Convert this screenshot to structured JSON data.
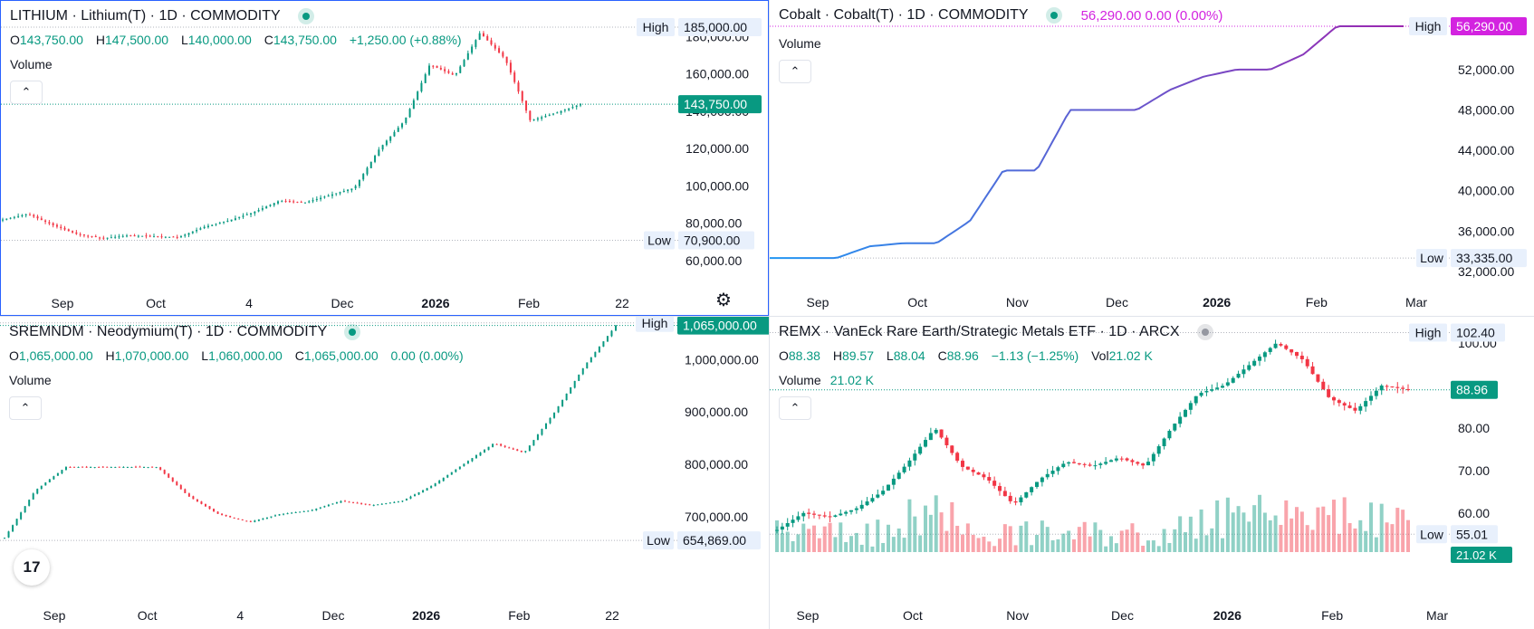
{
  "panes": [
    {
      "id": "lithium",
      "legend": {
        "symbol": "LITHIUM · Lithium(T) · 1D · COMMODITY",
        "status_dot_color": "#089981"
      },
      "ohlc": {
        "o": "143,750.00",
        "h": "147,500.00",
        "l": "140,000.00",
        "c": "143,750.00",
        "change": "+1,250.00 (+0.88%)",
        "change_color": "#089981"
      },
      "volume_label": "Volume",
      "high_tag": {
        "label": "High",
        "value": "185,000.00"
      },
      "low_tag": {
        "label": "Low",
        "value": "70,900.00"
      },
      "price_tag": {
        "value": "143,750.00",
        "color": "#089981"
      },
      "y_ticks": [
        "60,000.00",
        "80,000.00",
        "100,000.00",
        "120,000.00",
        "140,000.00",
        "160,000.00",
        "180,000.00"
      ],
      "x_ticks": [
        "Sep",
        "Oct",
        "4",
        "Dec",
        "2026",
        "Feb",
        "22"
      ]
    },
    {
      "id": "cobalt",
      "legend": {
        "symbol": "Cobalt · Cobalt(T) · 1D · COMMODITY",
        "status_dot_color": "#089981",
        "inline_values": "56,290.00  0.00 (0.00%)"
      },
      "volume_label": "Volume",
      "high_tag": {
        "label": "High",
        "value": "56,290.00"
      },
      "low_tag": {
        "label": "Low",
        "value": "33,335.00"
      },
      "price_tag": {
        "value": "56,290.00",
        "color": "#d323e0"
      },
      "y_ticks": [
        "32,000.00",
        "36,000.00",
        "40,000.00",
        "44,000.00",
        "48,000.00",
        "52,000.00"
      ],
      "x_ticks": [
        "Sep",
        "Oct",
        "Nov",
        "Dec",
        "2026",
        "Feb",
        "Mar"
      ]
    },
    {
      "id": "neodymium",
      "legend": {
        "symbol": "SREMNDM · Neodymium(T) · 1D · COMMODITY",
        "status_dot_color": "#089981"
      },
      "ohlc": {
        "o": "1,065,000.00",
        "h": "1,070,000.00",
        "l": "1,060,000.00",
        "c": "1,065,000.00",
        "change": "0.00 (0.00%)",
        "change_color": "#089981"
      },
      "volume_label": "Volume",
      "high_tag": {
        "label": "High",
        "value": "1,070,000.00"
      },
      "low_tag": {
        "label": "Low",
        "value": "654,869.00"
      },
      "price_tag": {
        "value": "1,065,000.00",
        "color": "#089981"
      },
      "y_ticks": [
        "700,000.00",
        "800,000.00",
        "900,000.00",
        "1,000,000.00"
      ],
      "x_ticks": [
        "Sep",
        "Oct",
        "4",
        "Dec",
        "2026",
        "Feb",
        "22"
      ]
    },
    {
      "id": "remx",
      "legend": {
        "symbol": "REMX · VanEck Rare Earth/Strategic Metals ETF · 1D · ARCX",
        "status_dot_color": "#9598a1"
      },
      "ohlc": {
        "o": "88.38",
        "h": "89.57",
        "l": "88.04",
        "c": "88.96",
        "change": "−1.13 (−1.25%)",
        "change_color": "#f23645",
        "vol_label": "Vol",
        "vol": "21.02 K"
      },
      "volume_label": "Volume",
      "volume_value": "21.02 K",
      "high_tag": {
        "label": "High",
        "value": "102.40"
      },
      "low_tag": {
        "label": "Low",
        "value": "55.01"
      },
      "price_tag": {
        "value": "88.96",
        "color": "#089981"
      },
      "volume_tag": {
        "value": "21.02 K"
      },
      "y_ticks": [
        "60.00",
        "70.00",
        "80.00",
        "100.00"
      ],
      "x_ticks": [
        "Sep",
        "Oct",
        "Nov",
        "Dec",
        "2026",
        "Feb",
        "Mar"
      ]
    }
  ],
  "ohlc_keys": {
    "o": "O",
    "h": "H",
    "l": "L",
    "c": "C"
  },
  "collapse_icon": "chevron-up-icon",
  "settings_icon": "gear-icon",
  "brand_logo": "tradingview-logo",
  "brand_logo_text": "17",
  "colors": {
    "up": "#089981",
    "down": "#f23645",
    "cobalt_line_start": "#2196f3",
    "cobalt_line_end": "#9c27b0",
    "grid_dotted": "#b2b5be"
  },
  "chart_data": [
    {
      "type": "candlestick",
      "title": "LITHIUM · Lithium(T) · 1D · COMMODITY",
      "ylim": [
        60000,
        185000
      ],
      "x_ticks": [
        "Sep",
        "Oct",
        "4",
        "Dec",
        "2026",
        "Feb",
        "22"
      ],
      "close_path": [
        [
          "Aug",
          82000
        ],
        [
          "Aug",
          85000
        ],
        [
          "Sep",
          79000
        ],
        [
          "Sep",
          74000
        ],
        [
          "Sep",
          72000
        ],
        [
          "Oct",
          73500
        ],
        [
          "Oct",
          73000
        ],
        [
          "Oct",
          72500
        ],
        [
          "Nov",
          78000
        ],
        [
          "Nov",
          81500
        ],
        [
          "Nov",
          86000
        ],
        [
          "Dec",
          92000
        ],
        [
          "Dec",
          91000
        ],
        [
          "Dec",
          95000
        ],
        [
          "Dec",
          99000
        ],
        [
          "2026",
          120000
        ],
        [
          "2026",
          135000
        ],
        [
          "Jan",
          165000
        ],
        [
          "Jan",
          159000
        ],
        [
          "Jan",
          182000
        ],
        [
          "Feb",
          168000
        ],
        [
          "Feb",
          135000
        ],
        [
          "Feb",
          139000
        ],
        [
          "Feb",
          143750
        ]
      ],
      "high": 185000,
      "low": 70900,
      "last": 143750
    },
    {
      "type": "line",
      "title": "Cobalt · Cobalt(T) · 1D · COMMODITY",
      "ylim": [
        32000,
        56290
      ],
      "x_ticks": [
        "Sep",
        "Oct",
        "Nov",
        "Dec",
        "2026",
        "Feb",
        "Mar"
      ],
      "series": [
        {
          "values": [
            [
              "Aug",
              33335
            ],
            [
              "Sep",
              33335
            ],
            [
              "Sep",
              33335
            ],
            [
              "Sep",
              34500
            ],
            [
              "Oct",
              34800
            ],
            [
              "Oct",
              34800
            ],
            [
              "Oct",
              37000
            ],
            [
              "Oct",
              42000
            ],
            [
              "Oct",
              42000
            ],
            [
              "Nov",
              48000
            ],
            [
              "Nov",
              48000
            ],
            [
              "Dec",
              48000
            ],
            [
              "Dec",
              50000
            ],
            [
              "Dec",
              51300
            ],
            [
              "Dec",
              52000
            ],
            [
              "Jan",
              52000
            ],
            [
              "Jan",
              53500
            ],
            [
              "2026",
              56290
            ],
            [
              "Feb",
              56290
            ],
            [
              "Mar",
              56290
            ]
          ]
        }
      ],
      "high": 56290,
      "low": 33335,
      "last": 56290
    },
    {
      "type": "candlestick",
      "title": "SREMNDM · Neodymium(T) · 1D · COMMODITY",
      "ylim": [
        650000,
        1080000
      ],
      "x_ticks": [
        "Sep",
        "Oct",
        "4",
        "Dec",
        "2026",
        "Feb",
        "22"
      ],
      "close_path": [
        [
          "Aug",
          660000
        ],
        [
          "Aug",
          750000
        ],
        [
          "Aug",
          795000
        ],
        [
          "Sep",
          795000
        ],
        [
          "Sep",
          795000
        ],
        [
          "Oct",
          795000
        ],
        [
          "Oct",
          740000
        ],
        [
          "Oct",
          705000
        ],
        [
          "Nov",
          690000
        ],
        [
          "Nov",
          705000
        ],
        [
          "Nov",
          712000
        ],
        [
          "Dec",
          730000
        ],
        [
          "Dec",
          722000
        ],
        [
          "Dec",
          730000
        ],
        [
          "2026",
          760000
        ],
        [
          "2026",
          800000
        ],
        [
          "Jan",
          840000
        ],
        [
          "Jan",
          822000
        ],
        [
          "Jan",
          900000
        ],
        [
          "Feb",
          990000
        ],
        [
          "Feb",
          1065000
        ]
      ],
      "high": 1070000,
      "low": 654869,
      "last": 1065000
    },
    {
      "type": "candlestick",
      "title": "REMX · VanEck Rare Earth/Strategic Metals ETF · 1D · ARCX",
      "ylim": [
        54,
        104
      ],
      "x_ticks": [
        "Sep",
        "Oct",
        "Nov",
        "Dec",
        "2026",
        "Feb",
        "Mar"
      ],
      "close_path": [
        [
          "Aug",
          56
        ],
        [
          "Sep",
          60
        ],
        [
          "Sep",
          59
        ],
        [
          "Sep",
          61
        ],
        [
          "Oct",
          65
        ],
        [
          "Oct",
          72
        ],
        [
          "Oct",
          80
        ],
        [
          "Oct",
          71
        ],
        [
          "Nov",
          68
        ],
        [
          "Nov",
          62
        ],
        [
          "Nov",
          68
        ],
        [
          "Dec",
          72
        ],
        [
          "Dec",
          71
        ],
        [
          "Dec",
          73
        ],
        [
          "Dec",
          71
        ],
        [
          "2026",
          80
        ],
        [
          "2026",
          88
        ],
        [
          "Jan",
          90
        ],
        [
          "Jan",
          95
        ],
        [
          "Jan",
          100
        ],
        [
          "Jan",
          96
        ],
        [
          "Feb",
          87
        ],
        [
          "Feb",
          84
        ],
        [
          "Feb",
          90
        ],
        [
          "Feb",
          88.96
        ]
      ],
      "high": 102.4,
      "low": 55.01,
      "last": 88.96,
      "volume_last": "21.02 K"
    }
  ]
}
